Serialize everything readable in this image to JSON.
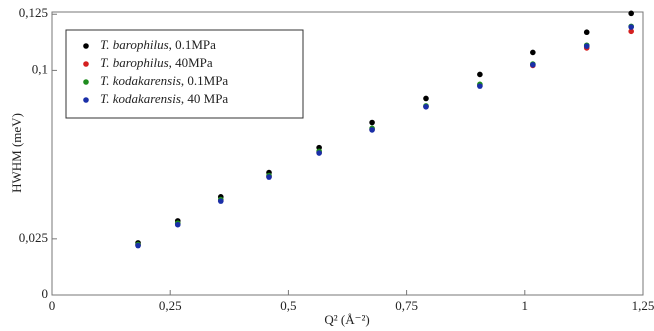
{
  "chart_data": {
    "type": "scatter",
    "xlabel": "Q² (Å⁻²)",
    "ylabel": "HWHM (meV)",
    "xlim": [
      0,
      1.25
    ],
    "ylim": [
      0,
      0.126
    ],
    "xticks": [
      0,
      {
        "value": 0.25,
        "label": "0,25"
      },
      {
        "value": 0.5,
        "label": "0,5"
      },
      {
        "value": 0.75,
        "label": "0,75"
      },
      1,
      {
        "value": 1.25,
        "label": "1,25"
      }
    ],
    "yticks": [
      0,
      {
        "value": 0.025,
        "label": "0,025"
      },
      {
        "value": 0.1,
        "label": "0,1"
      },
      {
        "value": 0.125,
        "label": "0,125"
      }
    ],
    "x": [
      0.182,
      0.266,
      0.357,
      0.459,
      0.565,
      0.677,
      0.791,
      0.905,
      1.017,
      1.131,
      1.225
    ],
    "series": [
      {
        "name": "T. barophilus, 0.1MPa",
        "color": "#000000",
        "values": [
          0.0232,
          0.033,
          0.0437,
          0.0545,
          0.0656,
          0.0768,
          0.0875,
          0.0982,
          0.108,
          0.117,
          0.1254
        ]
      },
      {
        "name": "T. barophilus, 40MPa",
        "color": "#d42020",
        "values": [
          0.0223,
          0.0317,
          0.042,
          0.0527,
          0.0634,
          0.0737,
          0.0839,
          0.0933,
          0.1022,
          0.11,
          0.1174
        ]
      },
      {
        "name": "T. kodakarensis, 0.1MPa",
        "color": "#1e8c1e",
        "values": [
          0.0225,
          0.032,
          0.0425,
          0.0532,
          0.064,
          0.0742,
          0.0842,
          0.0938,
          0.1028,
          0.1112,
          0.1196
        ]
      },
      {
        "name": "T. kodakarensis, 40 MPa",
        "color": "#1a2fa8",
        "values": [
          0.022,
          0.0313,
          0.0418,
          0.0525,
          0.0632,
          0.0735,
          0.0838,
          0.093,
          0.1025,
          0.1108,
          0.1193
        ]
      }
    ],
    "legend": "upper left"
  }
}
